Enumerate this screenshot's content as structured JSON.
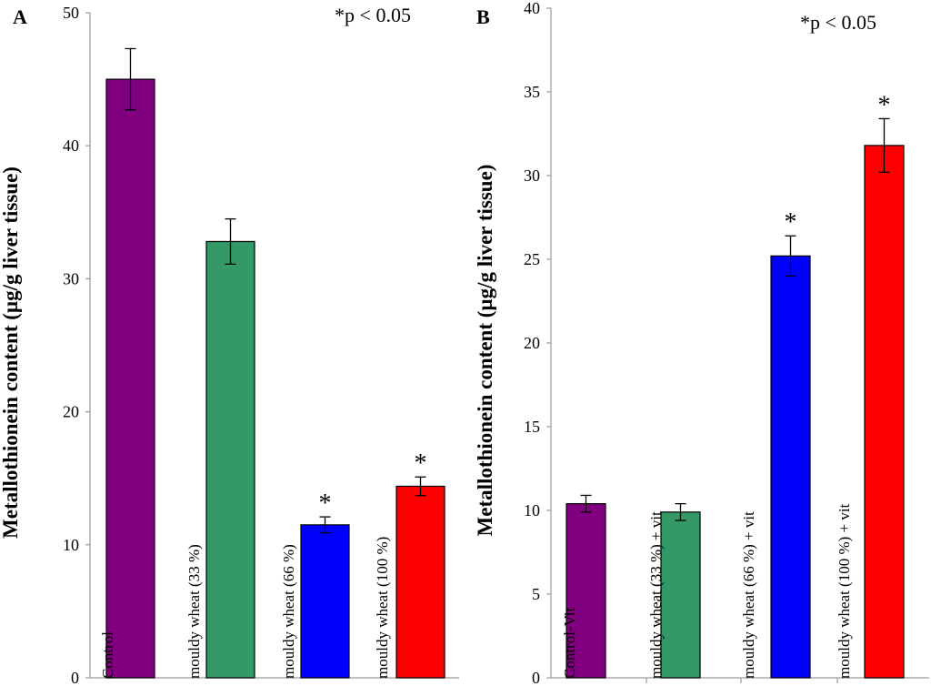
{
  "chart_data": [
    {
      "type": "bar",
      "panel_label": "A",
      "significance_note": "*p < 0.05",
      "title": "",
      "xlabel": "",
      "ylabel": "Metallothionein content (µg/g liver tissue)",
      "ylim": [
        0,
        50
      ],
      "yticks": [
        0,
        10,
        20,
        30,
        40,
        50
      ],
      "categories": [
        "Control",
        "mouldy wheat (33 %)",
        "mouldy wheat (66 %)",
        "mouldy wheat (100 %)"
      ],
      "values": [
        45.0,
        32.8,
        11.5,
        14.4
      ],
      "errors": [
        2.3,
        1.7,
        0.6,
        0.7
      ],
      "significance": [
        "",
        "",
        "*",
        "*"
      ],
      "colors": [
        "#800080",
        "#339966",
        "#0000ff",
        "#ff0000"
      ],
      "grid": false,
      "legend": "none"
    },
    {
      "type": "bar",
      "panel_label": "B",
      "significance_note": "*p < 0.05",
      "title": "",
      "xlabel": "",
      "ylabel": "Metallothionein content (µg/g liver tissue)",
      "ylim": [
        0,
        40
      ],
      "yticks": [
        0,
        5,
        10,
        15,
        20,
        25,
        30,
        35,
        40
      ],
      "categories": [
        "Control-Vit",
        "mouldy wheat (33 %) + vit",
        "mouldy wheat (66 %) + vit",
        "mouldy wheat (100 %) + vit"
      ],
      "values": [
        10.4,
        9.9,
        25.2,
        31.8
      ],
      "errors": [
        0.5,
        0.5,
        1.2,
        1.6
      ],
      "significance": [
        "",
        "",
        "*",
        "*"
      ],
      "colors": [
        "#800080",
        "#339966",
        "#0000ff",
        "#ff0000"
      ],
      "grid": false,
      "legend": "none"
    }
  ]
}
